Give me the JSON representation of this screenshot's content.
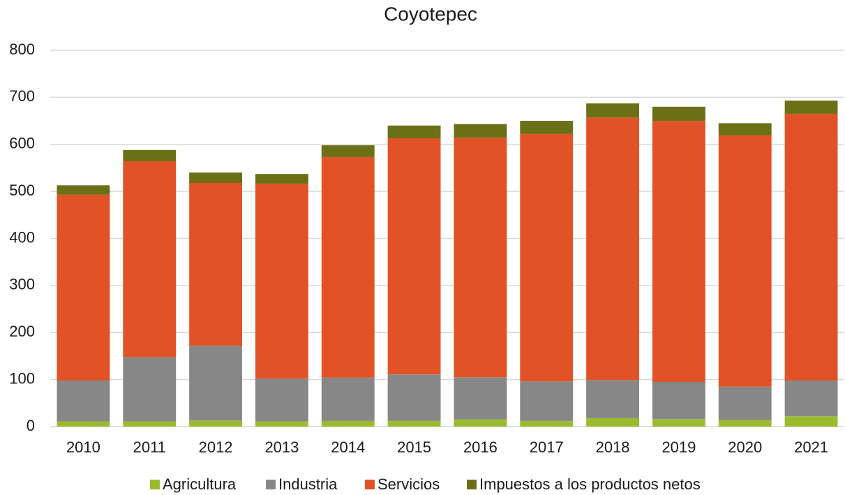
{
  "chart_data": {
    "type": "stacked_bar",
    "title": "Coyotepec",
    "categories": [
      "2010",
      "2011",
      "2012",
      "2013",
      "2014",
      "2015",
      "2016",
      "2017",
      "2018",
      "2019",
      "2020",
      "2021"
    ],
    "series": [
      {
        "name": "Agricultura",
        "color": "#9bbb2f",
        "values": [
          11,
          11,
          13,
          11,
          12,
          12,
          15,
          12,
          18,
          16,
          14,
          22
        ]
      },
      {
        "name": "Industria",
        "color": "#878787",
        "values": [
          87,
          137,
          159,
          91,
          92,
          99,
          90,
          84,
          81,
          79,
          71,
          76
        ]
      },
      {
        "name": "Servicios",
        "color": "#e15326",
        "values": [
          395,
          416,
          346,
          414,
          469,
          502,
          509,
          526,
          558,
          555,
          534,
          567
        ]
      },
      {
        "name": "Impuestos a los productos netos",
        "color": "#6b7017",
        "values": [
          20,
          24,
          22,
          21,
          25,
          27,
          29,
          28,
          30,
          30,
          26,
          28
        ]
      }
    ],
    "ylim": [
      0,
      800
    ],
    "yticks": [
      0,
      100,
      200,
      300,
      400,
      500,
      600,
      700,
      800
    ],
    "grid": true,
    "legend": "bottom"
  }
}
